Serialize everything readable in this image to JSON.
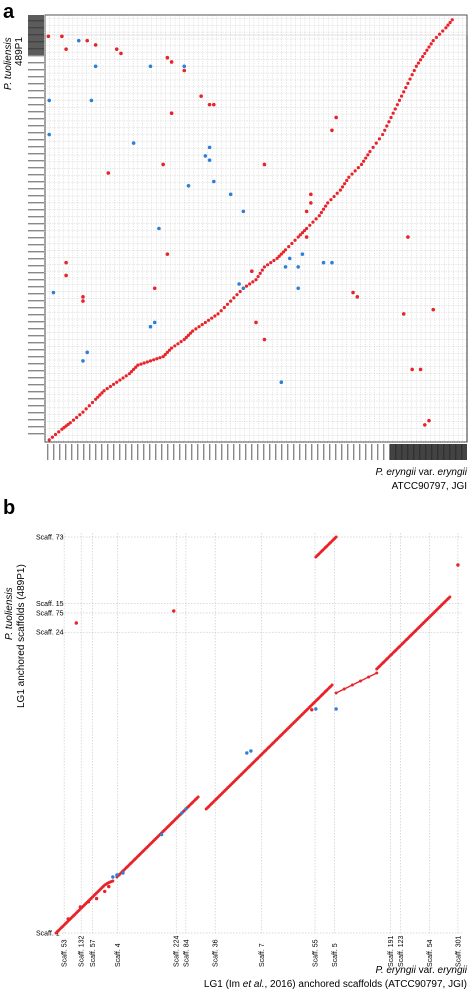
{
  "panels": {
    "a": {
      "label": "a",
      "y_species": "P. tuoliensis",
      "y_strain": "489P1",
      "x_species_italic": "P. eryngii",
      "x_species_var": " var. ",
      "x_species_italic2": "eryngii",
      "x_strain": "ATCC90797, JGI"
    },
    "b": {
      "label": "b",
      "y_species": "P. tuoliensis",
      "y_text": "LG1 anchored scaffolds (489P1)",
      "x_species_italic": "P. eryngii",
      "x_species_var": " var. ",
      "x_species_italic2": "eryngii",
      "x_text_pre": "LG1 (Im ",
      "x_text_etal": "et al.",
      "x_text_post": ", 2016) anchored scaffolds (ATCC90797, JGI)"
    }
  },
  "colors": {
    "forward": "#e8232a",
    "reverse": "#2f7fd6",
    "grid": "#b5b5b5"
  },
  "chart_data": [
    {
      "type": "scatter",
      "panel": "a",
      "title": "",
      "xlabel": "P. eryngii var. eryngii ATCC90797, JGI",
      "ylabel": "P. tuoliensis 489P1",
      "xlim": [
        0,
        100
      ],
      "ylim": [
        0,
        100
      ],
      "grid": true,
      "diagonal_forward": [
        [
          1,
          0.5
        ],
        [
          4,
          3
        ],
        [
          6,
          4.5
        ],
        [
          9,
          7
        ],
        [
          12,
          10
        ],
        [
          14,
          12
        ],
        [
          17,
          14
        ],
        [
          20,
          16
        ],
        [
          22,
          18
        ],
        [
          25,
          19
        ],
        [
          28,
          20
        ],
        [
          30,
          22
        ],
        [
          33,
          24
        ],
        [
          35,
          26
        ],
        [
          38,
          28
        ],
        [
          41,
          30
        ],
        [
          44,
          33
        ],
        [
          47,
          36
        ],
        [
          50,
          38
        ],
        [
          52,
          41
        ],
        [
          55,
          43
        ],
        [
          57,
          45
        ],
        [
          60,
          48
        ],
        [
          62,
          50
        ],
        [
          65,
          53
        ],
        [
          67,
          56
        ],
        [
          70,
          59
        ],
        [
          72,
          62
        ],
        [
          75,
          65
        ],
        [
          77,
          68
        ],
        [
          80,
          72
        ],
        [
          82,
          76
        ],
        [
          84,
          80
        ],
        [
          86,
          84
        ],
        [
          88,
          88
        ],
        [
          90,
          91
        ],
        [
          92,
          94
        ],
        [
          95,
          97
        ],
        [
          97,
          99.5
        ]
      ],
      "scatter_forward": [
        [
          0.8,
          95
        ],
        [
          4,
          95
        ],
        [
          5,
          92
        ],
        [
          10,
          94
        ],
        [
          12,
          93
        ],
        [
          17,
          92
        ],
        [
          18,
          91
        ],
        [
          29,
          90
        ],
        [
          30,
          89
        ],
        [
          33,
          87
        ],
        [
          30,
          77
        ],
        [
          37,
          81
        ],
        [
          39,
          79
        ],
        [
          40,
          79
        ],
        [
          68,
          73
        ],
        [
          69,
          76
        ],
        [
          52,
          65
        ],
        [
          15,
          63
        ],
        [
          28,
          65
        ],
        [
          5,
          42
        ],
        [
          5,
          39
        ],
        [
          9,
          33
        ],
        [
          9,
          34
        ],
        [
          26,
          36
        ],
        [
          29,
          44
        ],
        [
          49,
          40
        ],
        [
          62,
          54
        ],
        [
          63,
          56
        ],
        [
          63,
          58
        ],
        [
          62,
          48
        ],
        [
          73,
          35
        ],
        [
          74,
          34
        ],
        [
          87,
          17
        ],
        [
          85,
          30
        ],
        [
          86,
          48
        ],
        [
          50,
          28
        ],
        [
          52,
          24
        ],
        [
          92,
          31
        ],
        [
          90,
          4
        ],
        [
          91,
          5
        ],
        [
          89,
          17
        ]
      ],
      "scatter_reverse": [
        [
          1,
          72
        ],
        [
          8,
          94
        ],
        [
          12,
          88
        ],
        [
          25,
          88
        ],
        [
          39,
          69
        ],
        [
          38,
          67
        ],
        [
          39,
          66
        ],
        [
          34,
          60
        ],
        [
          40,
          61
        ],
        [
          44,
          58
        ],
        [
          61,
          44
        ],
        [
          60,
          41
        ],
        [
          60,
          36
        ],
        [
          56,
          14
        ],
        [
          57,
          41
        ],
        [
          58,
          43
        ],
        [
          47,
          54
        ],
        [
          27,
          50
        ],
        [
          21,
          70
        ],
        [
          11,
          80
        ],
        [
          1,
          80
        ],
        [
          2,
          35
        ],
        [
          9,
          19
        ],
        [
          10,
          21
        ],
        [
          25,
          27
        ],
        [
          26,
          28
        ],
        [
          46,
          37
        ],
        [
          47,
          36
        ],
        [
          66,
          42
        ],
        [
          68,
          42
        ],
        [
          33,
          88
        ]
      ]
    },
    {
      "type": "scatter",
      "panel": "b",
      "title": "",
      "xlabel": "P. eryngii var. eryngii LG1 (Im et al., 2016) anchored scaffolds (ATCC90797, JGI)",
      "ylabel": "P. tuoliensis LG1 anchored scaffolds (489P1)",
      "x_scaffolds": [
        {
          "label": "Scaff. 53",
          "pos": 2.0
        },
        {
          "label": "Scaff. 132",
          "pos": 6.2
        },
        {
          "label": "Scaff. 57",
          "pos": 9.0
        },
        {
          "label": "Scaff. 4",
          "pos": 15.2
        },
        {
          "label": "Scaff. 224",
          "pos": 29.6
        },
        {
          "label": "Scaff. 84",
          "pos": 32.0
        },
        {
          "label": "Scaff. 36",
          "pos": 39.2
        },
        {
          "label": "Scaff. 7",
          "pos": 50.6
        },
        {
          "label": "Scaff. 55",
          "pos": 63.8
        },
        {
          "label": "Scaff. 5",
          "pos": 68.6
        },
        {
          "label": "Scaff. 191",
          "pos": 82.4
        },
        {
          "label": "Scaff. 123",
          "pos": 84.8
        },
        {
          "label": "Scaff. 54",
          "pos": 92.0
        },
        {
          "label": "Scaff. 301",
          "pos": 99.0
        }
      ],
      "y_scaffolds": [
        {
          "label": "Scaff. 1",
          "pos": 0
        },
        {
          "label": "Scaff. 24",
          "pos": 75.2
        },
        {
          "label": "Scaff. 75",
          "pos": 80.0
        },
        {
          "label": "Scaff. 15",
          "pos": 82.4
        },
        {
          "label": "Scaff. 73",
          "pos": 99.0
        }
      ],
      "xlim": [
        0,
        100
      ],
      "ylim": [
        0,
        100
      ],
      "grid": true,
      "forward_runs": [
        [
          [
            0,
            0
          ],
          [
            1,
            1
          ],
          [
            2,
            2
          ],
          [
            3,
            3
          ],
          [
            4,
            4
          ],
          [
            5,
            5
          ],
          [
            6,
            6
          ],
          [
            7,
            7
          ],
          [
            8,
            8
          ],
          [
            9,
            9
          ],
          [
            10,
            10
          ],
          [
            11,
            11
          ],
          [
            12,
            12
          ],
          [
            13,
            12.6
          ],
          [
            14,
            13
          ]
        ],
        [
          [
            15,
            14
          ],
          [
            16,
            15
          ],
          [
            17,
            16
          ],
          [
            18,
            17
          ],
          [
            19,
            18
          ],
          [
            20,
            19
          ],
          [
            21,
            20
          ],
          [
            22,
            21
          ],
          [
            23,
            22
          ],
          [
            24,
            23
          ],
          [
            25,
            24
          ],
          [
            26,
            25
          ],
          [
            27,
            26
          ],
          [
            28,
            27
          ],
          [
            29,
            28
          ],
          [
            30,
            29
          ],
          [
            31,
            30
          ],
          [
            32,
            31
          ],
          [
            33,
            32
          ],
          [
            34,
            33
          ],
          [
            35,
            34
          ]
        ],
        [
          [
            37,
            31
          ],
          [
            38,
            32
          ],
          [
            39,
            33
          ],
          [
            40,
            34
          ],
          [
            41,
            35
          ],
          [
            42,
            36
          ],
          [
            43,
            37
          ],
          [
            44,
            38
          ],
          [
            45,
            39
          ],
          [
            46,
            40
          ],
          [
            47,
            41
          ],
          [
            48,
            42
          ],
          [
            49,
            43
          ],
          [
            50,
            44
          ],
          [
            51,
            45
          ],
          [
            52,
            46
          ],
          [
            53,
            47
          ],
          [
            54,
            48
          ],
          [
            55,
            49
          ],
          [
            56,
            50
          ],
          [
            57,
            51
          ],
          [
            58,
            52
          ],
          [
            59,
            53
          ],
          [
            60,
            54
          ],
          [
            61,
            55
          ],
          [
            62,
            56
          ],
          [
            63,
            57
          ],
          [
            64,
            58
          ],
          [
            65,
            59
          ],
          [
            66,
            60
          ],
          [
            67,
            61
          ],
          [
            68,
            62
          ]
        ],
        [
          [
            69,
            60
          ],
          [
            71,
            61
          ],
          [
            73,
            62
          ],
          [
            75,
            63
          ],
          [
            77,
            64
          ],
          [
            79,
            65
          ]
        ],
        [
          [
            79,
            66
          ],
          [
            80,
            67
          ],
          [
            81,
            68
          ],
          [
            82,
            69
          ],
          [
            83,
            70
          ],
          [
            84,
            71
          ],
          [
            85,
            72
          ],
          [
            86,
            73
          ],
          [
            87,
            74
          ],
          [
            88,
            75
          ],
          [
            89,
            76
          ],
          [
            90,
            77
          ],
          [
            91,
            78
          ],
          [
            92,
            79
          ],
          [
            93,
            80
          ],
          [
            94,
            81
          ],
          [
            95,
            82
          ],
          [
            96,
            83
          ],
          [
            97,
            84
          ]
        ],
        [
          [
            64,
            94
          ],
          [
            65,
            95
          ],
          [
            66,
            96
          ],
          [
            67,
            97
          ],
          [
            68,
            98
          ],
          [
            69,
            99
          ]
        ]
      ],
      "scatter_forward": [
        [
          3,
          3.5
        ],
        [
          6,
          6.5
        ],
        [
          8,
          7.8
        ],
        [
          10,
          8.6
        ],
        [
          12,
          10.4
        ],
        [
          13,
          11.6
        ],
        [
          29,
          80.5
        ],
        [
          5,
          77.5
        ],
        [
          63,
          55.8
        ],
        [
          99,
          92
        ]
      ],
      "scatter_reverse": [
        [
          14,
          14
        ],
        [
          16.5,
          15
        ],
        [
          15,
          14.5
        ],
        [
          26,
          24.6
        ],
        [
          31,
          30
        ],
        [
          32,
          31
        ],
        [
          47,
          45
        ],
        [
          48,
          45.5
        ],
        [
          64,
          56
        ],
        [
          69,
          56
        ]
      ]
    }
  ]
}
